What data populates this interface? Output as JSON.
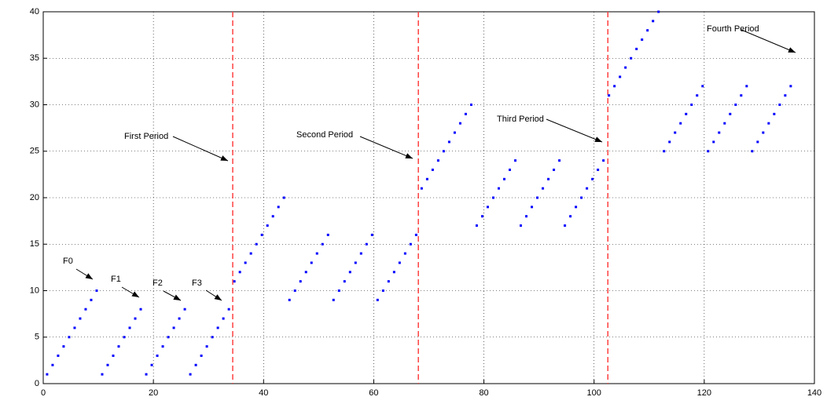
{
  "chart_data": {
    "type": "scatter",
    "x": [
      0.7,
      1.7,
      2.7,
      3.7,
      4.7,
      5.7,
      6.7,
      7.7,
      8.7,
      9.7,
      10.7,
      11.7,
      12.7,
      13.7,
      14.7,
      15.7,
      16.7,
      17.7,
      18.7,
      19.7,
      20.7,
      21.7,
      22.7,
      23.7,
      24.7,
      25.7,
      26.7,
      27.7,
      28.7,
      29.7,
      30.7,
      31.7,
      32.7,
      33.7,
      34.7,
      35.7,
      36.7,
      37.7,
      38.7,
      39.7,
      40.7,
      41.7,
      42.7,
      43.7,
      44.7,
      45.7,
      46.7,
      47.7,
      48.7,
      49.7,
      50.7,
      51.7,
      52.7,
      53.7,
      54.7,
      55.7,
      56.7,
      57.7,
      58.7,
      59.7,
      60.7,
      61.7,
      62.7,
      63.7,
      64.7,
      65.7,
      66.7,
      67.7,
      68.7,
      69.7,
      70.7,
      71.7,
      72.7,
      73.7,
      74.7,
      75.7,
      76.7,
      77.7,
      78.7,
      79.7,
      80.7,
      81.7,
      82.7,
      83.7,
      84.7,
      85.7,
      86.7,
      87.7,
      88.7,
      89.7,
      90.7,
      91.7,
      92.7,
      93.7,
      94.7,
      95.7,
      96.7,
      97.7,
      98.7,
      99.7,
      100.7,
      101.7,
      102.7,
      103.7,
      104.7,
      105.7,
      106.7,
      107.7,
      108.7,
      109.7,
      110.7,
      111.7,
      112.7,
      113.7,
      114.7,
      115.7,
      116.7,
      117.7,
      118.7,
      119.7,
      120.7,
      121.7,
      122.7,
      123.7,
      124.7,
      125.7,
      126.7,
      127.7,
      128.7,
      129.7,
      130.7,
      131.7,
      132.7,
      133.7,
      134.7,
      135.7
    ],
    "values": [
      1,
      2,
      3,
      4,
      5,
      6,
      7,
      8,
      9,
      10,
      1,
      2,
      3,
      4,
      5,
      6,
      7,
      8,
      1,
      2,
      3,
      4,
      5,
      6,
      7,
      8,
      1,
      2,
      3,
      4,
      5,
      6,
      7,
      8,
      11,
      12,
      13,
      14,
      15,
      16,
      17,
      18,
      19,
      20,
      9,
      10,
      11,
      12,
      13,
      14,
      15,
      16,
      9,
      10,
      11,
      12,
      13,
      14,
      15,
      16,
      9,
      10,
      11,
      12,
      13,
      14,
      15,
      16,
      21,
      22,
      23,
      24,
      25,
      26,
      27,
      28,
      29,
      30,
      17,
      18,
      19,
      20,
      21,
      22,
      23,
      24,
      17,
      18,
      19,
      20,
      21,
      22,
      23,
      24,
      17,
      18,
      19,
      20,
      21,
      22,
      23,
      24,
      31,
      32,
      33,
      34,
      35,
      36,
      37,
      38,
      39,
      40,
      25,
      26,
      27,
      28,
      29,
      30,
      31,
      32,
      25,
      26,
      27,
      28,
      29,
      30,
      31,
      32,
      25,
      26,
      27,
      28,
      29,
      30,
      31,
      32
    ],
    "color": "#0000ff",
    "reference_lines": {
      "values": [
        34.4,
        68.1,
        102.5
      ],
      "color": "#ff4040"
    },
    "annotations": [
      "F0",
      "F1",
      "F2",
      "F3",
      "First Period",
      "Second Period",
      "Third Period",
      "Fourth Period"
    ],
    "xlim": [
      0,
      140
    ],
    "xticks": [
      0,
      20,
      40,
      60,
      80,
      100,
      120,
      140
    ],
    "ylim": [
      0,
      40
    ],
    "yticks": [
      0,
      5,
      10,
      15,
      20,
      25,
      30,
      35,
      40
    ],
    "grid": true
  }
}
